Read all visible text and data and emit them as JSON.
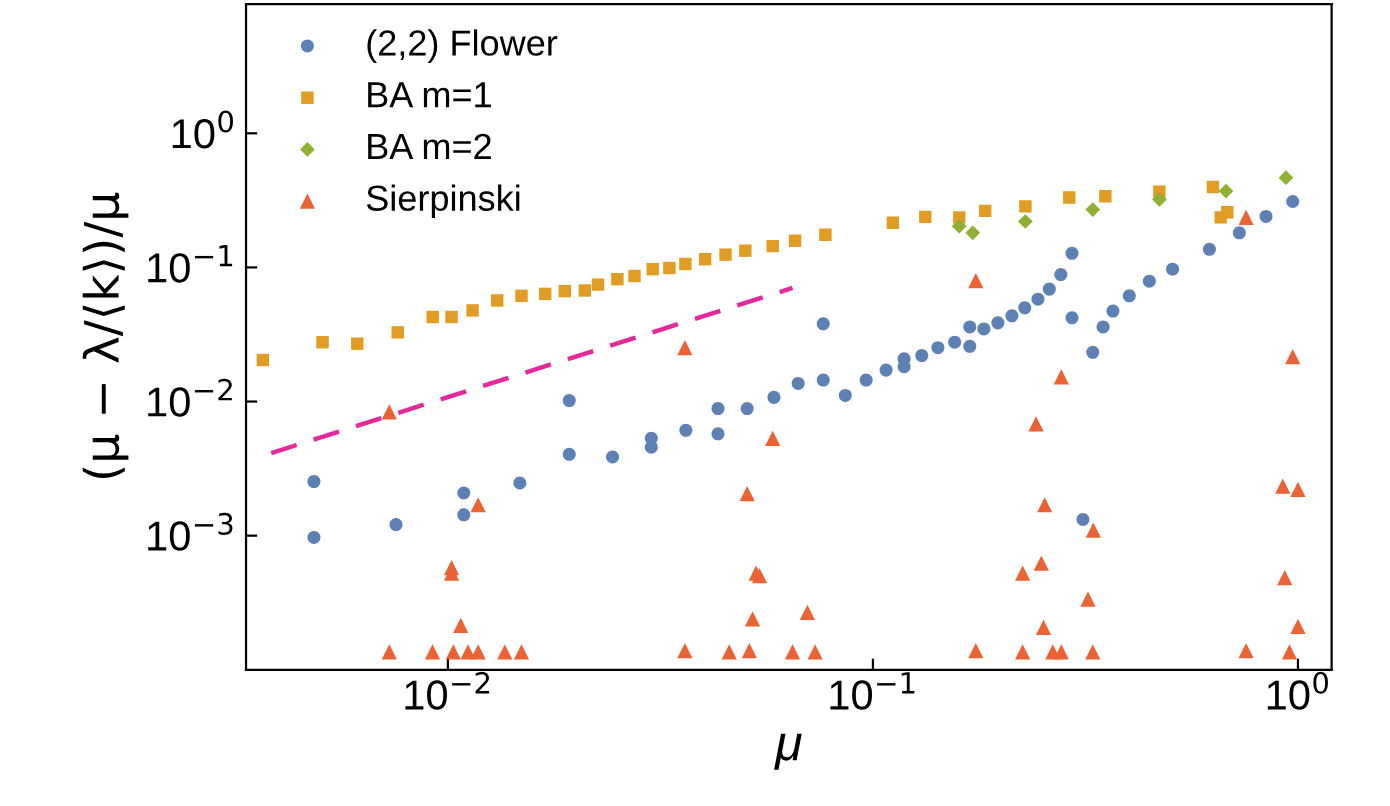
{
  "chart_data": {
    "type": "scatter",
    "xlabel": "μ",
    "ylabel": "(μ − λ/⟨k⟩)/μ",
    "log": "xy",
    "grid": false,
    "legend": "top left",
    "xlim": [
      0.00335,
      1.2
    ],
    "ylim": [
      0.0001,
      9.2
    ],
    "xticks": [
      {
        "value": 0.01,
        "label": "10$^{−2}$"
      },
      {
        "value": 0.1,
        "label": "10$^{−1}$"
      },
      {
        "value": 1,
        "label": "10$^{0}$"
      }
    ],
    "yticks": [
      {
        "value": 0.001,
        "label": "10$^{−3}$"
      },
      {
        "value": 0.01,
        "label": "10$^{−2}$"
      },
      {
        "value": 0.1,
        "label": "10$^{−1}$"
      },
      {
        "value": 1,
        "label": "10$^{0}$"
      }
    ],
    "series": [
      {
        "name": "(2,2) Flower",
        "color": "#5e81b5",
        "marker": "circle",
        "x": [
          0.00484,
          0.00484,
          0.00755,
          0.0109,
          0.0109,
          0.01477,
          0.0193,
          0.0193,
          0.0244,
          0.0301,
          0.0301,
          0.0363,
          0.0432,
          0.0432,
          0.0506,
          0.0585,
          0.0667,
          0.0764,
          0.0764,
          0.0861,
          0.0964,
          0.1074,
          0.1184,
          0.1184,
          0.1303,
          0.1422,
          0.1557,
          0.169,
          0.169,
          0.1824,
          0.1968,
          0.2123,
          0.2276,
          0.2445,
          0.26,
          0.2767,
          0.294,
          0.294,
          0.312,
          0.329,
          0.348,
          0.367,
          0.401,
          0.447,
          0.507,
          0.619,
          0.728,
          0.841,
          0.972
        ],
        "values": [
          0.00253,
          0.00097,
          0.00121,
          0.00208,
          0.00143,
          0.00247,
          0.01017,
          0.00404,
          0.00386,
          0.00532,
          0.00457,
          0.0061,
          0.00887,
          0.00575,
          0.00887,
          0.01074,
          0.01365,
          0.01445,
          0.038,
          0.0111,
          0.01445,
          0.01715,
          0.0208,
          0.0182,
          0.022,
          0.0252,
          0.0277,
          0.036,
          0.0258,
          0.0348,
          0.0386,
          0.0436,
          0.05,
          0.058,
          0.0689,
          0.0885,
          0.1274,
          0.0421,
          0.00132,
          0.0233,
          0.036,
          0.0473,
          0.0614,
          0.079,
          0.097,
          0.1364,
          0.181,
          0.24,
          0.31
        ]
      },
      {
        "name": "BA m=1",
        "color": "#e19c24",
        "marker": "square",
        "x": [
          0.00367,
          0.00507,
          0.00612,
          0.00762,
          0.00921,
          0.0102,
          0.01143,
          0.01306,
          0.0149,
          0.01694,
          0.01884,
          0.021,
          0.02255,
          0.02505,
          0.02748,
          0.03033,
          0.0332,
          0.0362,
          0.0403,
          0.045,
          0.0501,
          0.0581,
          0.0656,
          0.0773,
          0.1114,
          0.1328,
          0.1596,
          0.1837,
          0.2284,
          0.2897,
          0.3523,
          0.472,
          0.631,
          0.658,
          0.682
        ],
        "values": [
          0.0204,
          0.0277,
          0.027,
          0.0328,
          0.0427,
          0.0427,
          0.0478,
          0.0567,
          0.0614,
          0.0635,
          0.0666,
          0.0673,
          0.0745,
          0.0817,
          0.0863,
          0.097,
          0.099,
          0.106,
          0.115,
          0.1245,
          0.1333,
          0.1442,
          0.158,
          0.175,
          0.215,
          0.238,
          0.236,
          0.264,
          0.285,
          0.332,
          0.339,
          0.367,
          0.398,
          0.236,
          0.258
        ]
      },
      {
        "name": "BA m=2",
        "color": "#8fb032",
        "marker": "diamond",
        "x": [
          0.1596,
          0.1717,
          0.2284,
          0.329,
          0.472,
          0.677,
          0.937
        ],
        "values": [
          0.203,
          0.181,
          0.22,
          0.27,
          0.321,
          0.371,
          0.467
        ]
      },
      {
        "name": "Sierpinski",
        "color": "#eb6235",
        "marker": "triangle",
        "x": [
          0.00728,
          0.0102,
          0.0102,
          0.01072,
          0.01178,
          0.00728,
          0.0092,
          0.0103,
          0.01115,
          0.01178,
          0.01361,
          0.0149,
          0.0361,
          0.0361,
          0.0459,
          0.0512,
          0.0506,
          0.0531,
          0.0521,
          0.0581,
          0.0647,
          0.0541,
          0.0701,
          0.0731,
          0.1746,
          0.1746,
          0.225,
          0.242,
          0.249,
          0.252,
          0.2536,
          0.225,
          0.265,
          0.2775,
          0.2775,
          0.3206,
          0.33,
          0.329,
          0.755,
          0.755,
          0.921,
          0.931,
          0.955,
          0.972,
          1.0,
          1.0
        ],
        "values": [
          0.00837,
          0.000577,
          0.000526,
          0.000214,
          0.0017,
          0.000136,
          0.000136,
          0.000136,
          0.000136,
          0.000136,
          0.000136,
          0.000136,
          0.000139,
          0.0252,
          0.000136,
          0.000139,
          0.00206,
          0.000526,
          0.00024,
          0.00532,
          0.000136,
          0.000503,
          0.000268,
          0.000136,
          0.0798,
          0.000139,
          0.000136,
          0.00682,
          0.000624,
          0.000207,
          0.0017,
          0.000526,
          0.000136,
          0.0153,
          0.000136,
          0.000337,
          0.0011,
          0.000136,
          0.236,
          0.000139,
          0.00234,
          0.000486,
          0.000136,
          0.0216,
          0.00221,
          0.000211
        ]
      },
      {
        "type": "line",
        "color": "#e6289a",
        "line_style": "dashed",
        "marker": "none",
        "x": [
          0.00384,
          0.0647
        ],
        "values": [
          0.00413,
          0.0703
        ]
      }
    ]
  }
}
